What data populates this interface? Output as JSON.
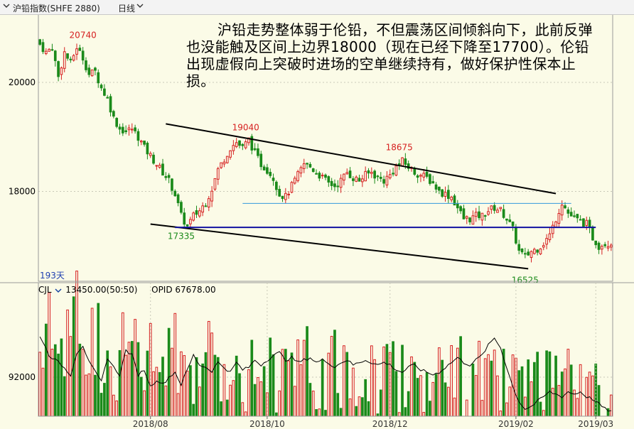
{
  "header": {
    "title": "沪铅指数(SHFE 2880)",
    "period": "日线",
    "dropdown_icon": "chevron-down-icon",
    "dropdown2_icon": "chevron-down-icon"
  },
  "annotation": "沪铅走势整体弱于伦铅，不但震荡区间倾斜向下，此前反弹也没能触及区间上边界18000（现在已经下降至17700）。伦铅出现虚假向上突破时进场的空单继续持有，做好保护性保本止损。",
  "colors": {
    "background": "#fbfbe7",
    "up": "#d62020",
    "down": "#1a8a1a",
    "channel_line": "#000000",
    "support_line": "#1010a0",
    "resistance_line": "#3399dd"
  },
  "chart_data": {
    "type": "candlestick",
    "price_panel": {
      "y_ticks": [
        20000,
        18000
      ],
      "ylim": [
        16350,
        21200
      ],
      "bar_count_label": "193天",
      "annotations": [
        {
          "label": "20740",
          "value": 20740,
          "kind": "high"
        },
        {
          "label": "19040",
          "value": 19040,
          "kind": "high"
        },
        {
          "label": "18675",
          "value": 18675,
          "kind": "high"
        },
        {
          "label": "17335",
          "value": 17335,
          "kind": "low"
        },
        {
          "label": "16525",
          "value": 16525,
          "kind": "low"
        }
      ],
      "trend_lines": [
        {
          "name": "channel-upper",
          "from": {
            "bar": 41,
            "price": 19240
          },
          "to": {
            "bar": 168,
            "price": 17960
          }
        },
        {
          "name": "channel-lower",
          "from": {
            "bar": 36,
            "price": 17400
          },
          "to": {
            "bar": 159,
            "price": 16580
          }
        },
        {
          "name": "support",
          "from": {
            "bar": 44,
            "price": 17340
          },
          "to": {
            "bar": 181,
            "price": 17340
          }
        },
        {
          "name": "resistance",
          "from": {
            "bar": 66,
            "price": 17780
          },
          "to": {
            "bar": 173,
            "price": 17780
          }
        }
      ]
    },
    "x_ticks": [
      {
        "label": "2018/08",
        "bar": 36
      },
      {
        "label": "2018/10",
        "bar": 74
      },
      {
        "label": "2018/12",
        "bar": 114
      },
      {
        "label": "2019/02",
        "bar": 155
      },
      {
        "label": "2019/03",
        "bar": 181
      }
    ],
    "volume_panel": {
      "indicator": "CJL",
      "value_label": "13450.00(50:50)",
      "opid_label": "OPID 67678.00",
      "y_ticks": [
        92000
      ],
      "ylim": [
        60000,
        160000
      ]
    },
    "series": [
      {
        "name": "收盘",
        "anchors": [
          [
            0,
            20700
          ],
          [
            2,
            20550
          ],
          [
            4,
            20650
          ],
          [
            6,
            20100
          ],
          [
            8,
            20550
          ],
          [
            10,
            20350
          ],
          [
            12,
            20650
          ],
          [
            14,
            20450
          ],
          [
            16,
            20150
          ],
          [
            18,
            20200
          ],
          [
            20,
            19900
          ],
          [
            22,
            19700
          ],
          [
            24,
            19350
          ],
          [
            26,
            19150
          ],
          [
            28,
            19100
          ],
          [
            30,
            19150
          ],
          [
            32,
            19000
          ],
          [
            34,
            18800
          ],
          [
            36,
            18650
          ],
          [
            38,
            18500
          ],
          [
            40,
            18350
          ],
          [
            42,
            18200
          ],
          [
            44,
            17950
          ],
          [
            46,
            17550
          ],
          [
            48,
            17350
          ],
          [
            50,
            17550
          ],
          [
            52,
            17650
          ],
          [
            54,
            17800
          ],
          [
            56,
            18050
          ],
          [
            58,
            18400
          ],
          [
            60,
            18600
          ],
          [
            62,
            18800
          ],
          [
            64,
            18900
          ],
          [
            66,
            18800
          ],
          [
            68,
            18950
          ],
          [
            70,
            18700
          ],
          [
            72,
            18500
          ],
          [
            74,
            18400
          ],
          [
            76,
            18250
          ],
          [
            78,
            17950
          ],
          [
            80,
            17900
          ],
          [
            82,
            18100
          ],
          [
            84,
            18300
          ],
          [
            86,
            18500
          ],
          [
            88,
            18450
          ],
          [
            90,
            18350
          ],
          [
            92,
            18250
          ],
          [
            94,
            18150
          ],
          [
            96,
            18100
          ],
          [
            98,
            18200
          ],
          [
            100,
            18350
          ],
          [
            102,
            18250
          ],
          [
            104,
            18200
          ],
          [
            106,
            18300
          ],
          [
            108,
            18350
          ],
          [
            110,
            18250
          ],
          [
            112,
            18200
          ],
          [
            114,
            18300
          ],
          [
            116,
            18450
          ],
          [
            118,
            18550
          ],
          [
            120,
            18450
          ],
          [
            122,
            18350
          ],
          [
            124,
            18300
          ],
          [
            126,
            18250
          ],
          [
            128,
            18150
          ],
          [
            130,
            18000
          ],
          [
            132,
            17950
          ],
          [
            134,
            17900
          ],
          [
            136,
            17700
          ],
          [
            138,
            17500
          ],
          [
            140,
            17500
          ],
          [
            142,
            17550
          ],
          [
            144,
            17550
          ],
          [
            146,
            17650
          ],
          [
            148,
            17700
          ],
          [
            150,
            17650
          ],
          [
            152,
            17500
          ],
          [
            154,
            17300
          ],
          [
            156,
            16900
          ],
          [
            158,
            16800
          ],
          [
            160,
            16900
          ],
          [
            162,
            16950
          ],
          [
            164,
            17050
          ],
          [
            166,
            17200
          ],
          [
            168,
            17500
          ],
          [
            170,
            17800
          ],
          [
            172,
            17600
          ],
          [
            174,
            17500
          ],
          [
            176,
            17450
          ],
          [
            178,
            17400
          ],
          [
            180,
            17150
          ],
          [
            182,
            17000
          ],
          [
            184,
            17050
          ],
          [
            186,
            17050
          ]
        ]
      }
    ],
    "volume_anchors": [
      [
        0,
        118000
      ],
      [
        8,
        128000
      ],
      [
        14,
        140000
      ],
      [
        20,
        118000
      ],
      [
        26,
        112000
      ],
      [
        32,
        108000
      ],
      [
        38,
        104000
      ],
      [
        44,
        110000
      ],
      [
        50,
        106000
      ],
      [
        56,
        102000
      ],
      [
        62,
        100000
      ],
      [
        68,
        103000
      ],
      [
        74,
        99000
      ],
      [
        80,
        100000
      ],
      [
        86,
        98000
      ],
      [
        92,
        97000
      ],
      [
        98,
        96000
      ],
      [
        104,
        96000
      ],
      [
        110,
        97000
      ],
      [
        116,
        98000
      ],
      [
        122,
        96000
      ],
      [
        128,
        94000
      ],
      [
        134,
        92000
      ],
      [
        140,
        92000
      ],
      [
        146,
        90000
      ],
      [
        152,
        86000
      ],
      [
        158,
        82000
      ],
      [
        164,
        84000
      ],
      [
        170,
        86000
      ],
      [
        176,
        84000
      ],
      [
        182,
        80000
      ],
      [
        186,
        72000
      ]
    ],
    "oi_anchors": [
      [
        0,
        126000
      ],
      [
        3,
        110000
      ],
      [
        7,
        102000
      ],
      [
        10,
        94000
      ],
      [
        12,
        112000
      ],
      [
        14,
        118000
      ],
      [
        16,
        104000
      ],
      [
        18,
        96000
      ],
      [
        20,
        88000
      ],
      [
        22,
        108000
      ],
      [
        24,
        100000
      ],
      [
        26,
        94000
      ],
      [
        28,
        114000
      ],
      [
        30,
        110000
      ],
      [
        32,
        94000
      ],
      [
        34,
        98000
      ],
      [
        36,
        84000
      ],
      [
        38,
        90000
      ],
      [
        40,
        86000
      ],
      [
        42,
        92000
      ],
      [
        44,
        96000
      ],
      [
        46,
        86000
      ],
      [
        48,
        98000
      ],
      [
        50,
        110000
      ],
      [
        52,
        102000
      ],
      [
        54,
        100000
      ],
      [
        56,
        97000
      ],
      [
        58,
        104000
      ],
      [
        60,
        100000
      ],
      [
        62,
        96000
      ],
      [
        64,
        104000
      ],
      [
        66,
        98000
      ],
      [
        68,
        100000
      ],
      [
        70,
        106000
      ],
      [
        72,
        102000
      ],
      [
        74,
        106000
      ],
      [
        76,
        110000
      ],
      [
        78,
        112000
      ],
      [
        80,
        106000
      ],
      [
        82,
        108000
      ],
      [
        84,
        104000
      ],
      [
        86,
        106000
      ],
      [
        88,
        108000
      ],
      [
        90,
        104000
      ],
      [
        92,
        106000
      ],
      [
        94,
        104000
      ],
      [
        96,
        100000
      ],
      [
        98,
        104000
      ],
      [
        100,
        106000
      ],
      [
        102,
        102000
      ],
      [
        104,
        104000
      ],
      [
        106,
        106000
      ],
      [
        108,
        104000
      ],
      [
        110,
        102000
      ],
      [
        112,
        104000
      ],
      [
        114,
        102000
      ],
      [
        116,
        98000
      ],
      [
        118,
        96000
      ],
      [
        120,
        100000
      ],
      [
        122,
        102000
      ],
      [
        124,
        98000
      ],
      [
        126,
        96000
      ],
      [
        128,
        94000
      ],
      [
        130,
        96000
      ],
      [
        132,
        100000
      ],
      [
        134,
        104000
      ],
      [
        136,
        108000
      ],
      [
        138,
        104000
      ],
      [
        140,
        102000
      ],
      [
        142,
        106000
      ],
      [
        144,
        110000
      ],
      [
        146,
        118000
      ],
      [
        148,
        124000
      ],
      [
        150,
        116000
      ],
      [
        152,
        100000
      ],
      [
        154,
        84000
      ],
      [
        156,
        72000
      ],
      [
        158,
        66000
      ],
      [
        160,
        68000
      ],
      [
        162,
        72000
      ],
      [
        164,
        76000
      ],
      [
        166,
        80000
      ],
      [
        168,
        78000
      ],
      [
        170,
        76000
      ],
      [
        172,
        80000
      ],
      [
        174,
        78000
      ],
      [
        176,
        80000
      ],
      [
        178,
        76000
      ],
      [
        180,
        74000
      ],
      [
        182,
        70000
      ],
      [
        184,
        66000
      ],
      [
        186,
        64000
      ]
    ]
  }
}
